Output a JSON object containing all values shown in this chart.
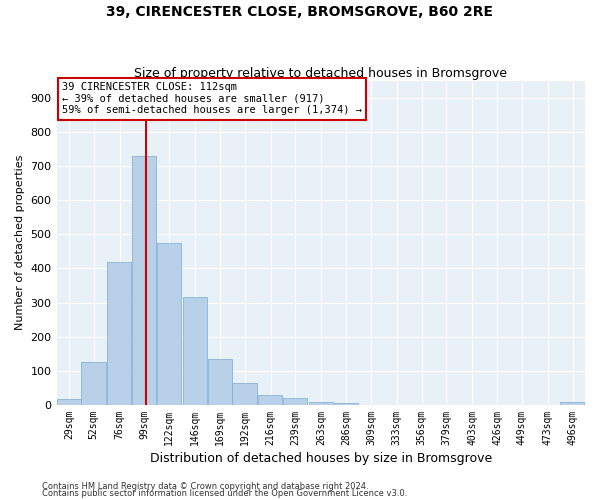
{
  "title": "39, CIRENCESTER CLOSE, BROMSGROVE, B60 2RE",
  "subtitle": "Size of property relative to detached houses in Bromsgrove",
  "xlabel": "Distribution of detached houses by size in Bromsgrove",
  "ylabel": "Number of detached properties",
  "footer1": "Contains HM Land Registry data © Crown copyright and database right 2024.",
  "footer2": "Contains public sector information licensed under the Open Government Licence v3.0.",
  "bar_color": "#b8d0e8",
  "bar_edge_color": "#7aaacf",
  "background_color": "#e8f0f8",
  "vline_x": 112,
  "annotation_line1": "39 CIRENCESTER CLOSE: 112sqm",
  "annotation_line2": "← 39% of detached houses are smaller (917)",
  "annotation_line3": "59% of semi-detached houses are larger (1,374) →",
  "annotation_box_color": "#ffffff",
  "annotation_box_edge": "#cc0000",
  "vline_color": "#cc0000",
  "categories": [
    "29sqm",
    "52sqm",
    "76sqm",
    "99sqm",
    "122sqm",
    "146sqm",
    "169sqm",
    "192sqm",
    "216sqm",
    "239sqm",
    "263sqm",
    "286sqm",
    "309sqm",
    "333sqm",
    "356sqm",
    "379sqm",
    "403sqm",
    "426sqm",
    "449sqm",
    "473sqm",
    "496sqm"
  ],
  "bin_left": [
    29,
    52,
    76,
    99,
    122,
    146,
    169,
    192,
    216,
    239,
    263,
    286,
    309,
    333,
    356,
    379,
    403,
    426,
    449,
    473,
    496
  ],
  "bin_width": 23,
  "values": [
    18,
    125,
    420,
    730,
    475,
    315,
    135,
    63,
    28,
    20,
    10,
    5,
    0,
    0,
    0,
    0,
    0,
    0,
    0,
    0,
    10
  ],
  "ylim": [
    0,
    950
  ],
  "yticks": [
    0,
    100,
    200,
    300,
    400,
    500,
    600,
    700,
    800,
    900
  ],
  "grid_color": "#ffffff",
  "figsize": [
    6.0,
    5.0
  ],
  "dpi": 100
}
